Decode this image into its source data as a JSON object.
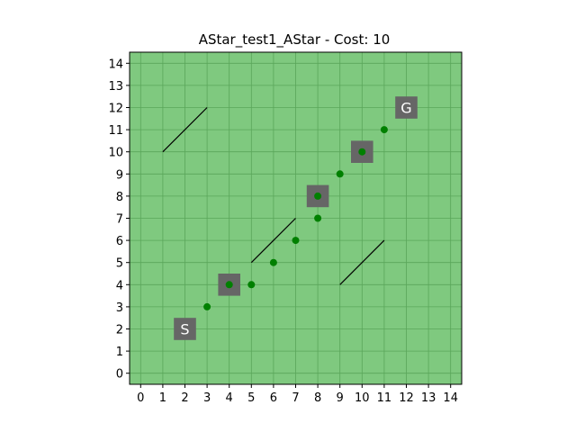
{
  "chart_data": {
    "type": "scatter",
    "title": "AStar_test1_AStar - Cost: 10",
    "xlabel": "",
    "ylabel": "",
    "xlim": [
      -0.5,
      14.5
    ],
    "ylim": [
      -0.5,
      14.5
    ],
    "xticks": [
      "0",
      "1",
      "2",
      "3",
      "4",
      "5",
      "6",
      "7",
      "8",
      "9",
      "10",
      "11",
      "12",
      "13",
      "14"
    ],
    "yticks": [
      "0",
      "1",
      "2",
      "3",
      "4",
      "5",
      "6",
      "7",
      "8",
      "9",
      "10",
      "11",
      "12",
      "13",
      "14"
    ],
    "grid": true,
    "background_color": "#7fc97f",
    "grid_color": "#5aa65a",
    "start": {
      "label": "S",
      "x": 2,
      "y": 2
    },
    "goal": {
      "label": "G",
      "x": 12,
      "y": 12
    },
    "obstacle_cells": [
      {
        "x": 2,
        "y": 2
      },
      {
        "x": 4,
        "y": 4
      },
      {
        "x": 8,
        "y": 8
      },
      {
        "x": 10,
        "y": 10
      },
      {
        "x": 12,
        "y": 12
      }
    ],
    "cell_color": "#666666",
    "path_points": [
      {
        "x": 3,
        "y": 3
      },
      {
        "x": 4,
        "y": 4
      },
      {
        "x": 5,
        "y": 4
      },
      {
        "x": 6,
        "y": 5
      },
      {
        "x": 7,
        "y": 6
      },
      {
        "x": 8,
        "y": 7
      },
      {
        "x": 8,
        "y": 8
      },
      {
        "x": 9,
        "y": 9
      },
      {
        "x": 10,
        "y": 10
      },
      {
        "x": 11,
        "y": 11
      }
    ],
    "path_color": "#008000",
    "line_segments": [
      {
        "x1": 1,
        "y1": 10,
        "x2": 3,
        "y2": 12
      },
      {
        "x1": 5,
        "y1": 5,
        "x2": 7,
        "y2": 7
      },
      {
        "x1": 9,
        "y1": 4,
        "x2": 11,
        "y2": 6
      }
    ],
    "line_color": "#000000"
  }
}
